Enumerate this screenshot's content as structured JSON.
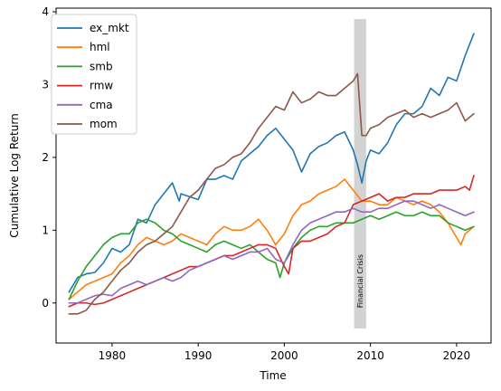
{
  "chart_data": {
    "type": "line",
    "title": "",
    "xlabel": "Time",
    "ylabel": "Cumulative Log Return",
    "xlim": [
      1973.5,
      2024.0
    ],
    "ylim": [
      -0.55,
      4.05
    ],
    "x_ticks": [
      1980,
      1990,
      2000,
      2010,
      2020
    ],
    "y_ticks": [
      0,
      1,
      2,
      3,
      4
    ],
    "grid": false,
    "legend_position": "top-left",
    "shaded_region": {
      "x": [
        2008.1,
        2009.5
      ],
      "y": [
        -0.35,
        3.9
      ],
      "color": "#d3d3d3",
      "label": "Financial Crisis"
    },
    "series": [
      {
        "name": "ex_mkt",
        "color": "#1f77b4",
        "x": [
          1975,
          1976,
          1977,
          1978,
          1979,
          1980,
          1981,
          1982,
          1983,
          1984,
          1985,
          1986,
          1987,
          1987.8,
          1988,
          1990,
          1991,
          1992,
          1993,
          1994,
          1995,
          1996,
          1997,
          1998,
          1999,
          2000,
          2001,
          2002,
          2003,
          2004,
          2005,
          2006,
          2007,
          2008,
          2008.5,
          2009,
          2009.5,
          2010,
          2011,
          2012,
          2013,
          2014,
          2015,
          2016,
          2017,
          2018,
          2019,
          2020,
          2021,
          2022
        ],
        "values": [
          0.15,
          0.35,
          0.4,
          0.42,
          0.55,
          0.75,
          0.7,
          0.8,
          1.15,
          1.1,
          1.35,
          1.5,
          1.65,
          1.4,
          1.5,
          1.42,
          1.7,
          1.7,
          1.75,
          1.7,
          1.95,
          2.05,
          2.15,
          2.3,
          2.4,
          2.25,
          2.1,
          1.8,
          2.05,
          2.15,
          2.2,
          2.3,
          2.35,
          2.1,
          1.9,
          1.65,
          1.95,
          2.1,
          2.05,
          2.2,
          2.45,
          2.6,
          2.6,
          2.7,
          2.95,
          2.85,
          3.1,
          3.05,
          3.4,
          3.7
        ]
      },
      {
        "name": "hml",
        "color": "#ff7f0e",
        "x": [
          1975,
          1976,
          1977,
          1978,
          1979,
          1980,
          1981,
          1982,
          1983,
          1984,
          1985,
          1986,
          1987,
          1988,
          1989,
          1990,
          1991,
          1992,
          1993,
          1994,
          1995,
          1996,
          1997,
          1998,
          1999,
          2000,
          2001,
          2002,
          2003,
          2004,
          2005,
          2006,
          2007,
          2008,
          2009,
          2010,
          2011,
          2012,
          2013,
          2014,
          2015,
          2016,
          2017,
          2018,
          2019,
          2020,
          2020.5,
          2021,
          2022
        ],
        "values": [
          0.05,
          0.15,
          0.25,
          0.3,
          0.35,
          0.4,
          0.55,
          0.65,
          0.8,
          0.9,
          0.85,
          0.8,
          0.85,
          0.95,
          0.9,
          0.85,
          0.8,
          0.95,
          1.05,
          1.0,
          1.0,
          1.05,
          1.15,
          1.0,
          0.8,
          0.95,
          1.2,
          1.35,
          1.4,
          1.5,
          1.55,
          1.6,
          1.7,
          1.55,
          1.4,
          1.4,
          1.35,
          1.35,
          1.45,
          1.4,
          1.35,
          1.4,
          1.35,
          1.25,
          1.1,
          0.9,
          0.8,
          0.95,
          1.05
        ]
      },
      {
        "name": "smb",
        "color": "#2ca02c",
        "x": [
          1975,
          1976,
          1977,
          1978,
          1979,
          1980,
          1981,
          1982,
          1983,
          1984,
          1985,
          1986,
          1987,
          1988,
          1989,
          1990,
          1991,
          1992,
          1993,
          1994,
          1995,
          1996,
          1997,
          1998,
          1999,
          1999.5,
          2000,
          2001,
          2002,
          2003,
          2004,
          2005,
          2006,
          2007,
          2008,
          2009,
          2010,
          2011,
          2012,
          2013,
          2014,
          2015,
          2016,
          2017,
          2018,
          2019,
          2020,
          2021,
          2022
        ],
        "values": [
          0.05,
          0.3,
          0.5,
          0.65,
          0.8,
          0.9,
          0.95,
          0.95,
          1.1,
          1.15,
          1.1,
          1.0,
          0.95,
          0.85,
          0.8,
          0.75,
          0.7,
          0.8,
          0.85,
          0.8,
          0.75,
          0.8,
          0.7,
          0.6,
          0.55,
          0.35,
          0.55,
          0.75,
          0.9,
          1.0,
          1.05,
          1.05,
          1.1,
          1.1,
          1.1,
          1.15,
          1.2,
          1.15,
          1.2,
          1.25,
          1.2,
          1.2,
          1.25,
          1.2,
          1.2,
          1.1,
          1.05,
          1.0,
          1.05
        ]
      },
      {
        "name": "rmw",
        "color": "#d62728",
        "x": [
          1975,
          1976,
          1977,
          1978,
          1979,
          1980,
          1981,
          1982,
          1983,
          1984,
          1985,
          1986,
          1987,
          1988,
          1989,
          1990,
          1991,
          1992,
          1993,
          1994,
          1995,
          1996,
          1997,
          1998,
          1999,
          2000,
          2000.5,
          2001,
          2002,
          2003,
          2004,
          2005,
          2006,
          2007,
          2008,
          2009,
          2010,
          2011,
          2012,
          2013,
          2014,
          2015,
          2016,
          2017,
          2018,
          2019,
          2020,
          2021,
          2021.5,
          2022
        ],
        "values": [
          -0.05,
          0.0,
          0.0,
          -0.02,
          0.0,
          0.05,
          0.1,
          0.15,
          0.2,
          0.25,
          0.3,
          0.35,
          0.4,
          0.45,
          0.5,
          0.5,
          0.55,
          0.6,
          0.65,
          0.65,
          0.7,
          0.75,
          0.8,
          0.8,
          0.75,
          0.5,
          0.4,
          0.75,
          0.85,
          0.85,
          0.9,
          0.95,
          1.05,
          1.1,
          1.35,
          1.4,
          1.45,
          1.5,
          1.4,
          1.45,
          1.45,
          1.5,
          1.5,
          1.5,
          1.55,
          1.55,
          1.55,
          1.6,
          1.55,
          1.75
        ]
      },
      {
        "name": "cma",
        "color": "#9467bd",
        "x": [
          1975,
          1976,
          1977,
          1978,
          1979,
          1980,
          1981,
          1982,
          1983,
          1984,
          1985,
          1986,
          1987,
          1988,
          1989,
          1990,
          1991,
          1992,
          1993,
          1994,
          1995,
          1996,
          1997,
          1998,
          1999,
          2000,
          2001,
          2002,
          2003,
          2004,
          2005,
          2006,
          2007,
          2008,
          2009,
          2010,
          2011,
          2012,
          2013,
          2014,
          2015,
          2016,
          2017,
          2018,
          2019,
          2020,
          2021,
          2022
        ],
        "values": [
          0.0,
          0.0,
          0.05,
          0.1,
          0.12,
          0.1,
          0.2,
          0.25,
          0.3,
          0.25,
          0.3,
          0.35,
          0.3,
          0.35,
          0.45,
          0.5,
          0.55,
          0.6,
          0.65,
          0.6,
          0.65,
          0.7,
          0.7,
          0.75,
          0.6,
          0.55,
          0.8,
          1.0,
          1.1,
          1.15,
          1.2,
          1.25,
          1.25,
          1.3,
          1.25,
          1.25,
          1.3,
          1.3,
          1.35,
          1.4,
          1.4,
          1.35,
          1.3,
          1.35,
          1.3,
          1.25,
          1.2,
          1.25
        ]
      },
      {
        "name": "mom",
        "color": "#8c564b",
        "x": [
          1975,
          1976,
          1977,
          1978,
          1979,
          1980,
          1981,
          1982,
          1983,
          1984,
          1985,
          1986,
          1987,
          1988,
          1989,
          1990,
          1991,
          1992,
          1993,
          1994,
          1995,
          1996,
          1997,
          1998,
          1999,
          2000,
          2001,
          2002,
          2003,
          2004,
          2005,
          2006,
          2007,
          2008,
          2008.5,
          2009,
          2009.5,
          2010,
          2011,
          2012,
          2013,
          2014,
          2015,
          2016,
          2017,
          2018,
          2019,
          2020,
          2021,
          2022
        ],
        "values": [
          -0.15,
          -0.15,
          -0.1,
          0.05,
          0.15,
          0.3,
          0.45,
          0.55,
          0.7,
          0.8,
          0.85,
          0.95,
          1.05,
          1.25,
          1.45,
          1.55,
          1.7,
          1.85,
          1.9,
          2.0,
          2.05,
          2.2,
          2.4,
          2.55,
          2.7,
          2.65,
          2.9,
          2.75,
          2.8,
          2.9,
          2.85,
          2.85,
          2.95,
          3.05,
          3.15,
          2.3,
          2.3,
          2.4,
          2.45,
          2.55,
          2.6,
          2.65,
          2.55,
          2.6,
          2.55,
          2.6,
          2.65,
          2.75,
          2.5,
          2.6
        ]
      }
    ]
  }
}
